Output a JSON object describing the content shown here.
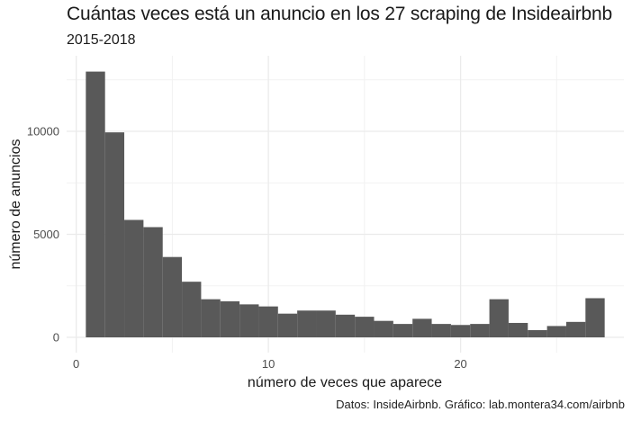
{
  "chart_data": {
    "type": "histogram",
    "title": "Cuántas veces está un anuncio en los 27 scraping de Insideairbnb",
    "subtitle": "2015-2018",
    "xlabel": "número de veces que aparece",
    "ylabel": "número de anuncios",
    "caption": "Datos: InsideAirbnb. Gráfico: lab.montera34.com/airbnb",
    "xlim": [
      -0.5,
      28.5
    ],
    "ylim": [
      0,
      13000
    ],
    "x_ticks": [
      0,
      10,
      20
    ],
    "y_ticks": [
      0,
      5000,
      10000
    ],
    "grid": true,
    "bin_width": 1,
    "x": [
      1,
      2,
      3,
      4,
      5,
      6,
      7,
      8,
      9,
      10,
      11,
      12,
      13,
      14,
      15,
      16,
      17,
      18,
      19,
      20,
      21,
      22,
      23,
      24,
      25,
      26,
      27
    ],
    "values": [
      12900,
      9950,
      5700,
      5350,
      3900,
      2700,
      1850,
      1750,
      1600,
      1500,
      1150,
      1300,
      1300,
      1100,
      1000,
      800,
      650,
      900,
      650,
      600,
      650,
      1850,
      700,
      350,
      550,
      750,
      1900
    ],
    "bar_color": "#595959"
  }
}
